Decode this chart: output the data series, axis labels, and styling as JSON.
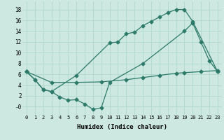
{
  "title": "",
  "xlabel": "Humidex (Indice chaleur)",
  "ylabel": "",
  "bg_color": "#cce8e0",
  "line_color": "#2d7a6a",
  "grid_color": "#b0d8cc",
  "xlim": [
    -0.5,
    23.5
  ],
  "ylim": [
    -1.5,
    19.5
  ],
  "xticks": [
    0,
    1,
    2,
    3,
    4,
    5,
    6,
    7,
    8,
    9,
    10,
    11,
    12,
    13,
    14,
    15,
    16,
    17,
    18,
    19,
    20,
    21,
    22,
    23
  ],
  "yticks": [
    0,
    2,
    4,
    6,
    8,
    10,
    12,
    14,
    16,
    18
  ],
  "ytick_labels": [
    "-0",
    "2",
    "4",
    "6",
    "8",
    "10",
    "12",
    "14",
    "16",
    "18"
  ],
  "line1_x": [
    0,
    1,
    2,
    3,
    6,
    10,
    11,
    12,
    13,
    14,
    15,
    16,
    17,
    18,
    19,
    20,
    23
  ],
  "line1_y": [
    6.5,
    5.0,
    3.2,
    2.8,
    5.8,
    11.8,
    12.0,
    13.5,
    13.8,
    15.0,
    15.8,
    16.6,
    17.4,
    18.0,
    18.0,
    15.8,
    6.5
  ],
  "line2_x": [
    0,
    1,
    2,
    3,
    4,
    5,
    6,
    7,
    8,
    9,
    10,
    14,
    19,
    20,
    21,
    22,
    23
  ],
  "line2_y": [
    6.5,
    5.0,
    3.2,
    2.8,
    1.8,
    1.2,
    1.3,
    0.5,
    -0.5,
    -0.2,
    4.5,
    8.0,
    14.0,
    15.5,
    12.0,
    8.5,
    6.5
  ],
  "line3_x": [
    0,
    3,
    6,
    9,
    12,
    14,
    16,
    18,
    19,
    21,
    23
  ],
  "line3_y": [
    6.5,
    4.5,
    4.5,
    4.6,
    5.0,
    5.4,
    5.8,
    6.2,
    6.3,
    6.5,
    6.7
  ]
}
